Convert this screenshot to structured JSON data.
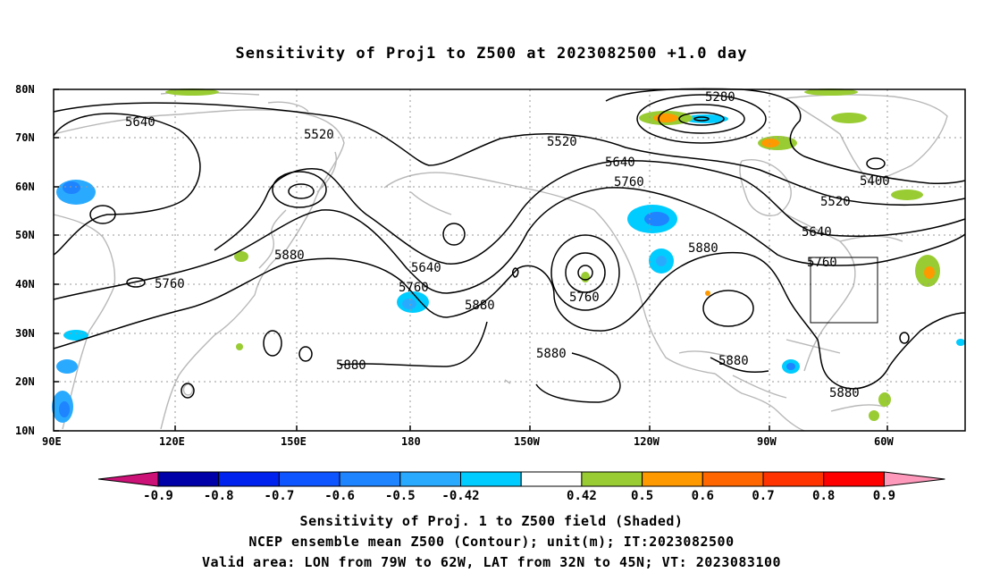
{
  "title": "Sensitivity of Proj1 to Z500 at 2023082500 +1.0 day",
  "map": {
    "lat_ticks": [
      "80N",
      "70N",
      "60N",
      "50N",
      "40N",
      "30N",
      "20N",
      "10N"
    ],
    "lon_ticks": [
      "90E",
      "120E",
      "150E",
      "180",
      "150W",
      "120W",
      "90W",
      "60W"
    ],
    "contour_labels": [
      "5280",
      "5640",
      "5520",
      "5520",
      "5640",
      "5760",
      "5400",
      "5520",
      "5640",
      "5760",
      "5880",
      "5760",
      "5640",
      "5760",
      "5880",
      "5760",
      "5880",
      "5880",
      "5880",
      "5880",
      "5880"
    ],
    "valid_area": {
      "lon_from": "79W",
      "lon_to": "62W",
      "lat_from": "32N",
      "lat_to": "45N"
    }
  },
  "colorbar": {
    "labels": [
      "-0.9",
      "-0.8",
      "-0.7",
      "-0.6",
      "-0.5",
      "-0.42",
      "0.42",
      "0.5",
      "0.6",
      "0.7",
      "0.8",
      "0.9"
    ],
    "colors": [
      "#0000a8",
      "#0022ee",
      "#0f55ff",
      "#1e84ff",
      "#2aaaff",
      "#00ccff",
      "#ffffff",
      "#99cc33",
      "#ff9900",
      "#ff6600",
      "#ff3300",
      "#ff0000"
    ],
    "low_end_color": "#cc1177",
    "high_end_color": "#ff99bb"
  },
  "footer": {
    "line1": "Sensitivity of Proj. 1 to Z500 field (Shaded)",
    "line2": "NCEP ensemble mean Z500 (Contour); unit(m); IT:2023082500",
    "line3": "Valid area: LON from 79W to 62W, LAT from 32N to 45N; VT: 2023083100"
  }
}
